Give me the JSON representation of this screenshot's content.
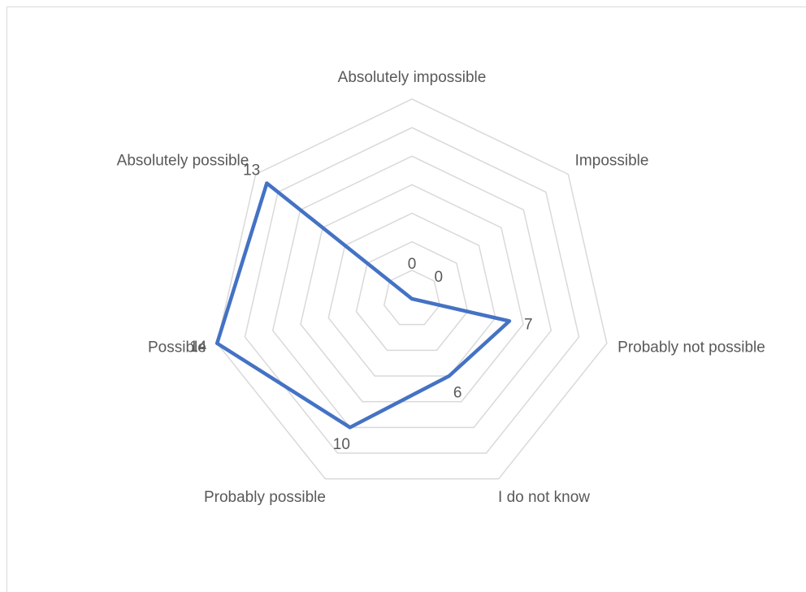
{
  "chart_data": {
    "type": "radar",
    "categories": [
      "Absolutely impossible",
      "Impossible",
      "Probably not possible",
      "I do not know",
      "Probably  possible",
      "Possible",
      "Absolutely possible"
    ],
    "series": [
      {
        "color": "#4472c4",
        "values": [
          0,
          0,
          7,
          6,
          10,
          14,
          13
        ]
      }
    ],
    "ylim": [
      0,
      14
    ],
    "yticks": [
      0,
      2,
      4,
      6,
      8,
      10,
      12,
      14
    ],
    "grid": true,
    "grid_color": "#d9d9d9"
  }
}
